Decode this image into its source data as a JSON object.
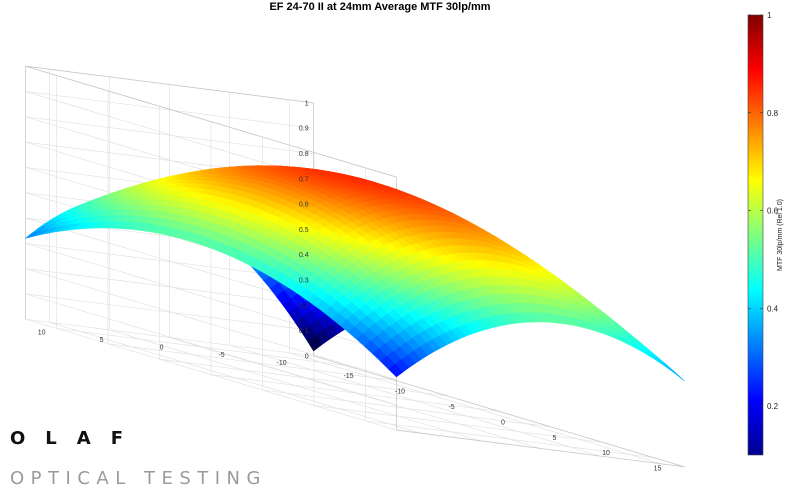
{
  "chart_data": {
    "type": "surface",
    "title": "EF 24-70 II at 24mm Average MTF 30lp/mm",
    "zlabel": "",
    "xlabel": "",
    "ylabel": "",
    "x_ticks": [
      "-15",
      "-10",
      "-5",
      "0",
      "5",
      "10",
      "15"
    ],
    "y_ticks": [
      "-10",
      "-5",
      "0",
      "5",
      "10"
    ],
    "z_ticks": [
      "0",
      "0.1",
      "0.2",
      "0.3",
      "0.4",
      "0.5",
      "0.6",
      "0.7",
      "0.8",
      "0.9",
      "1"
    ],
    "xlim": [
      -18,
      18
    ],
    "ylim": [
      -12,
      12
    ],
    "zlim": [
      0,
      1
    ],
    "grid": true,
    "surface": {
      "x": [
        -18,
        0,
        18
      ],
      "y": [
        -12,
        0,
        12
      ],
      "z": [
        [
          0.02,
          0.49,
          0.34
        ],
        [
          0.52,
          0.85,
          0.5
        ],
        [
          0.32,
          0.5,
          0.21
        ]
      ]
    },
    "colorbar": {
      "label": "MTF 30lp/mm (Rel 1.0)",
      "ticks": [
        "0.2",
        "0.4",
        "0.6",
        "0.8",
        "1"
      ],
      "range": [
        0.1,
        1.0
      ],
      "colormap": "jet"
    }
  },
  "logo": {
    "line1": "OLAF",
    "line2": "OPTICAL TESTING"
  }
}
